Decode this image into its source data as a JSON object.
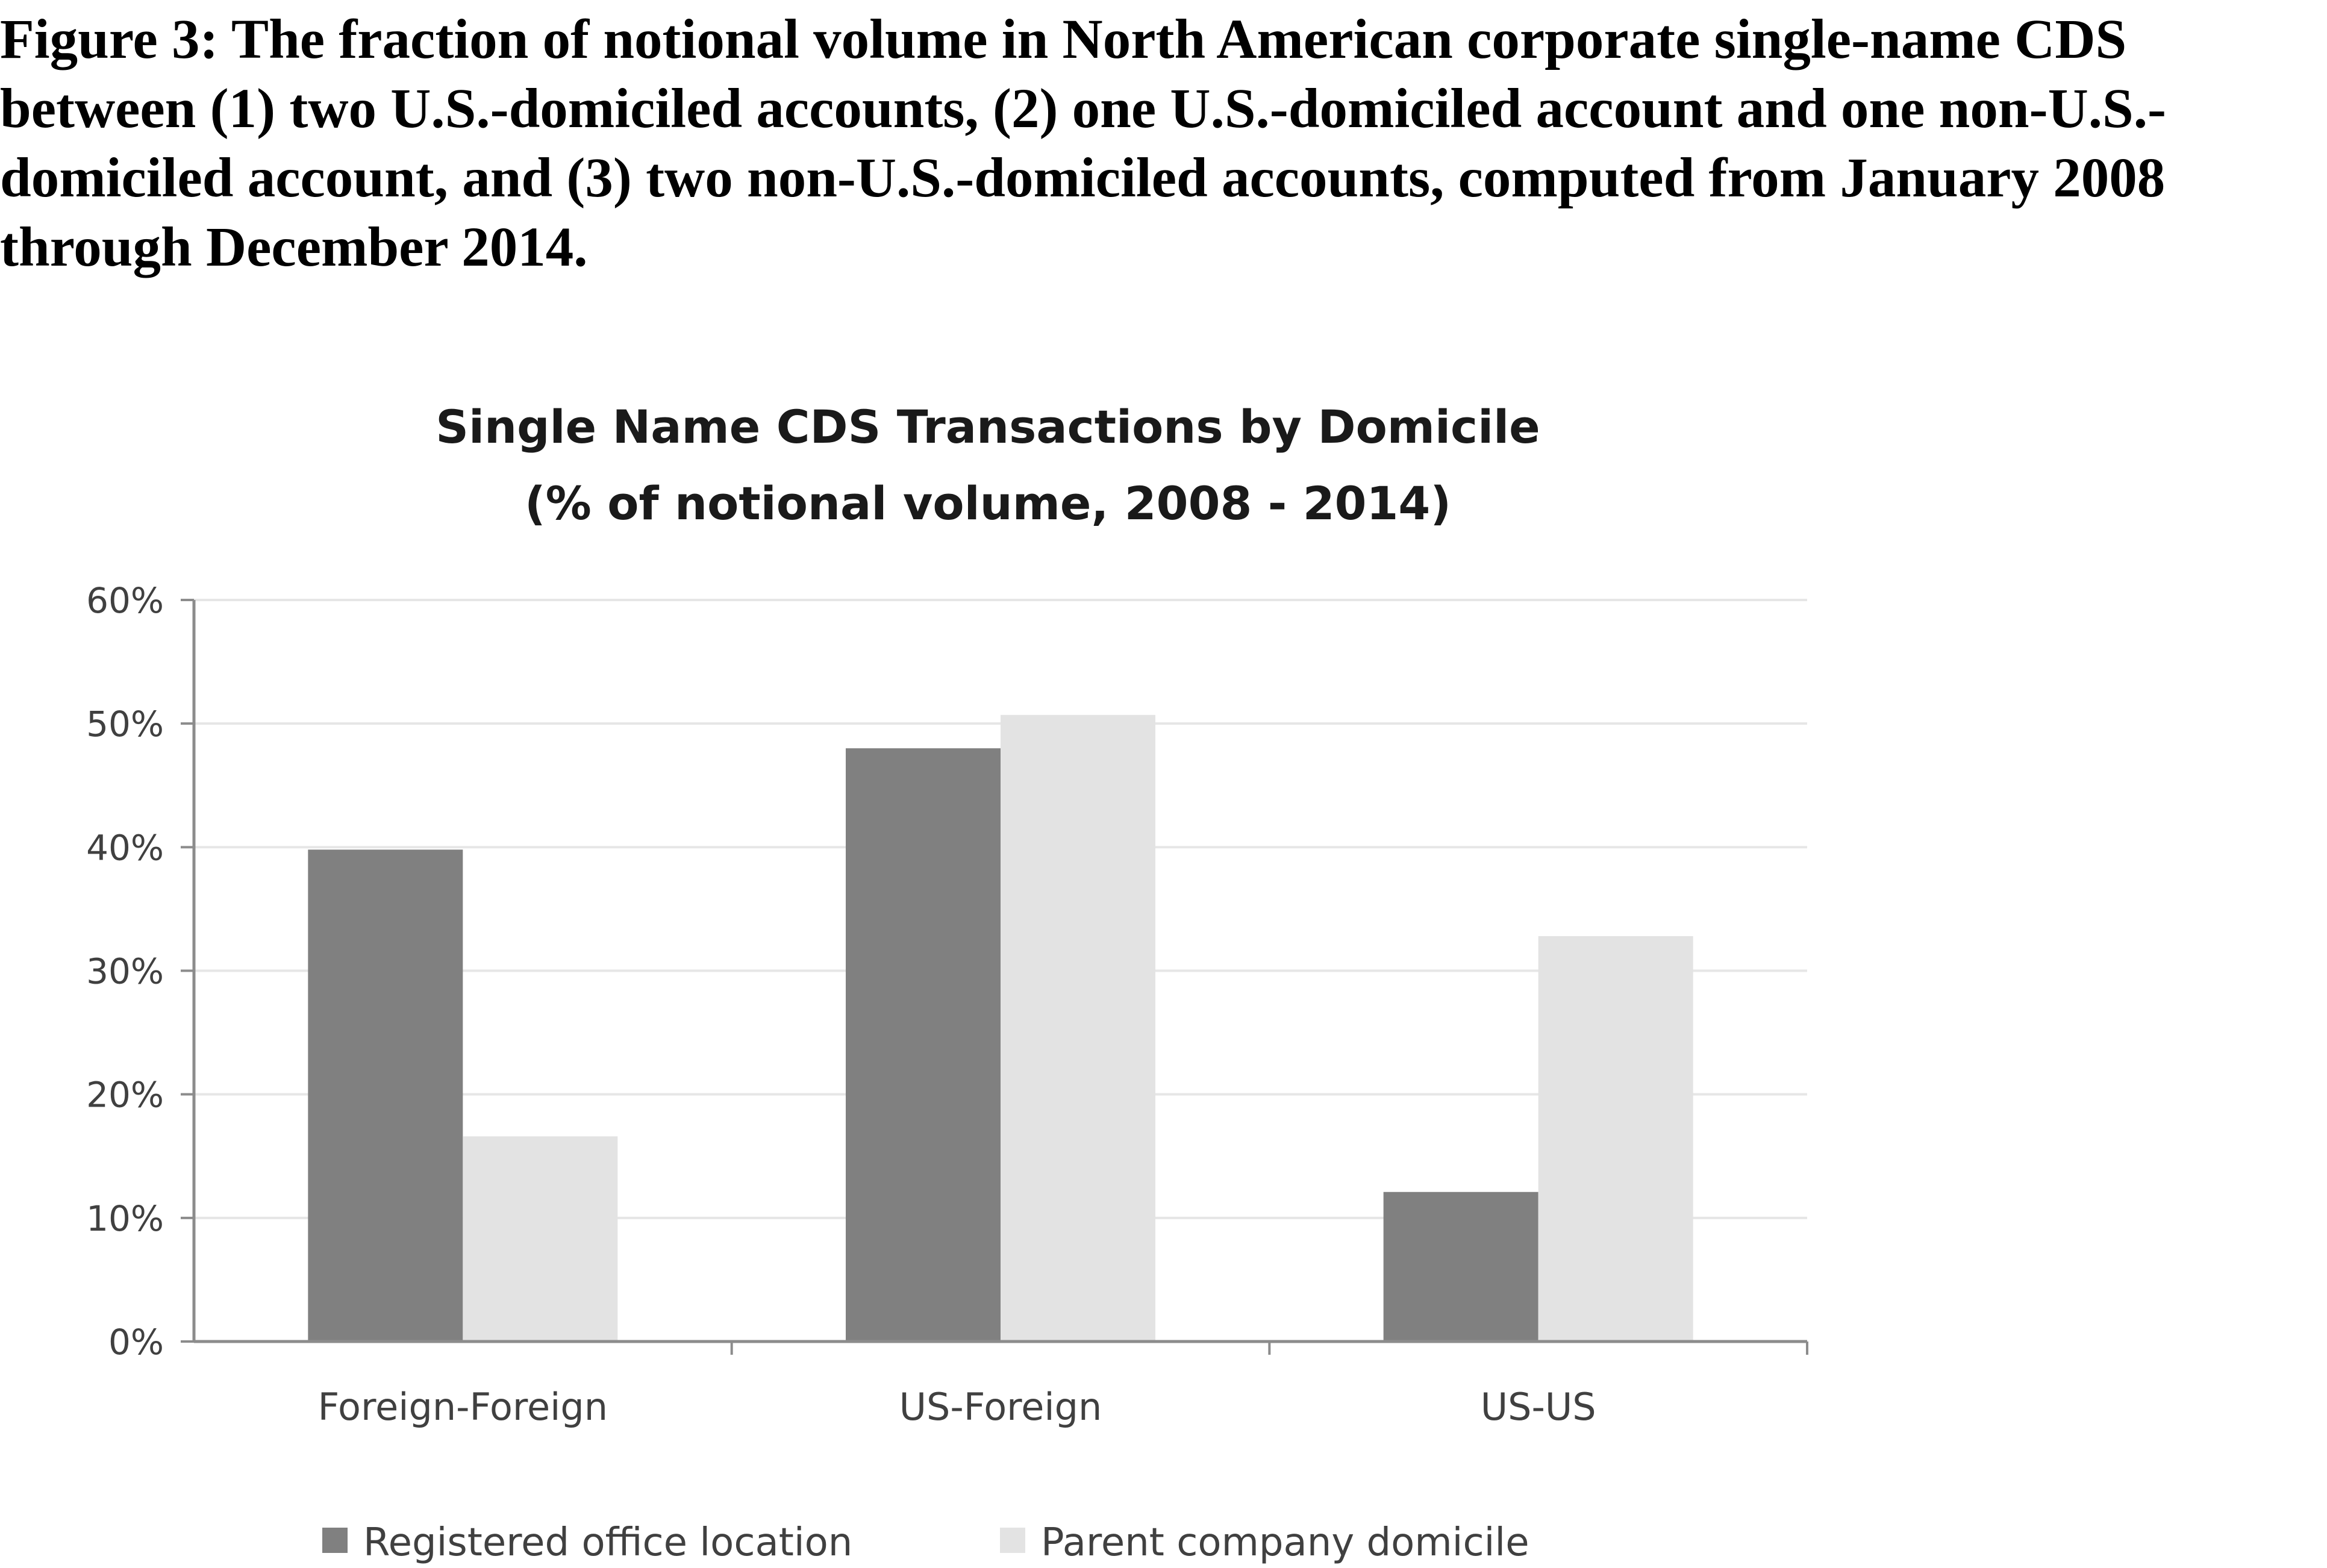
{
  "figure_caption": "Figure 3: The fraction of notional volume in North American corporate single-name CDS between (1) two U.S.-domiciled accounts, (2) one U.S.-domiciled account and one non-U.S.-domiciled account, and (3) two non-U.S.-domiciled accounts, computed from January 2008 through December 2014.",
  "colors": {
    "registered_office_location": "#808080",
    "parent_company_domicile": "#e3e3e3",
    "gridline": "#e6e6e6",
    "axis": "#8c8c8c"
  },
  "chart_data": {
    "type": "bar",
    "title": "Single Name CDS Transactions by Domicile",
    "subtitle": "(% of notional volume, 2008 - 2014)",
    "xlabel": "",
    "ylabel": "",
    "categories": [
      "Foreign-Foreign",
      "US-Foreign",
      "US-US"
    ],
    "series": [
      {
        "name": "Registered office location",
        "values": [
          39.8,
          48.0,
          12.1
        ]
      },
      {
        "name": "Parent company domicile",
        "values": [
          16.6,
          50.7,
          32.8
        ]
      }
    ],
    "ylim": [
      0,
      60
    ],
    "yticks": [
      0,
      10,
      20,
      30,
      40,
      50,
      60
    ],
    "ytick_labels": [
      "0%",
      "10%",
      "20%",
      "30%",
      "40%",
      "50%",
      "60%"
    ],
    "grid": true,
    "legend": "bottom"
  }
}
